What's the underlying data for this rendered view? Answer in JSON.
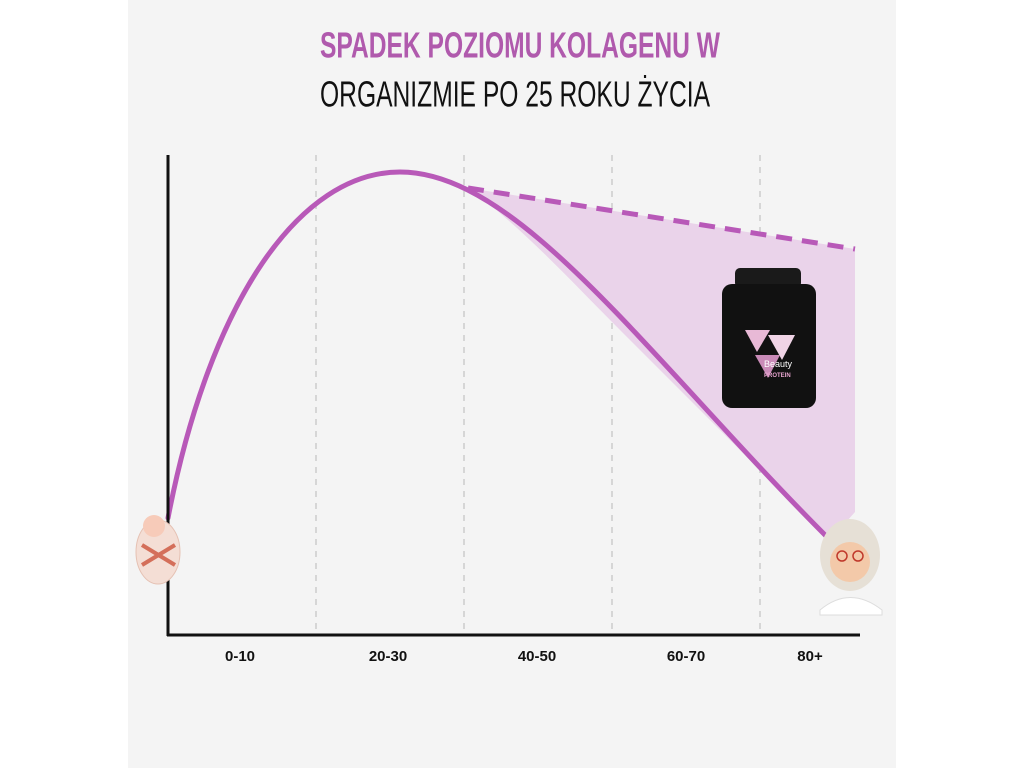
{
  "title": {
    "line1": "SPADEK POZIOMU KOLAGENU W",
    "line2": "ORGANIZMIE PO 25 ROKU ŻYCIA"
  },
  "x_axis": {
    "labels": [
      "0-10",
      "20-30",
      "40-50",
      "60-70",
      "80+"
    ]
  },
  "product": {
    "name": "Beauty",
    "subname": "PROTEIN"
  }
}
